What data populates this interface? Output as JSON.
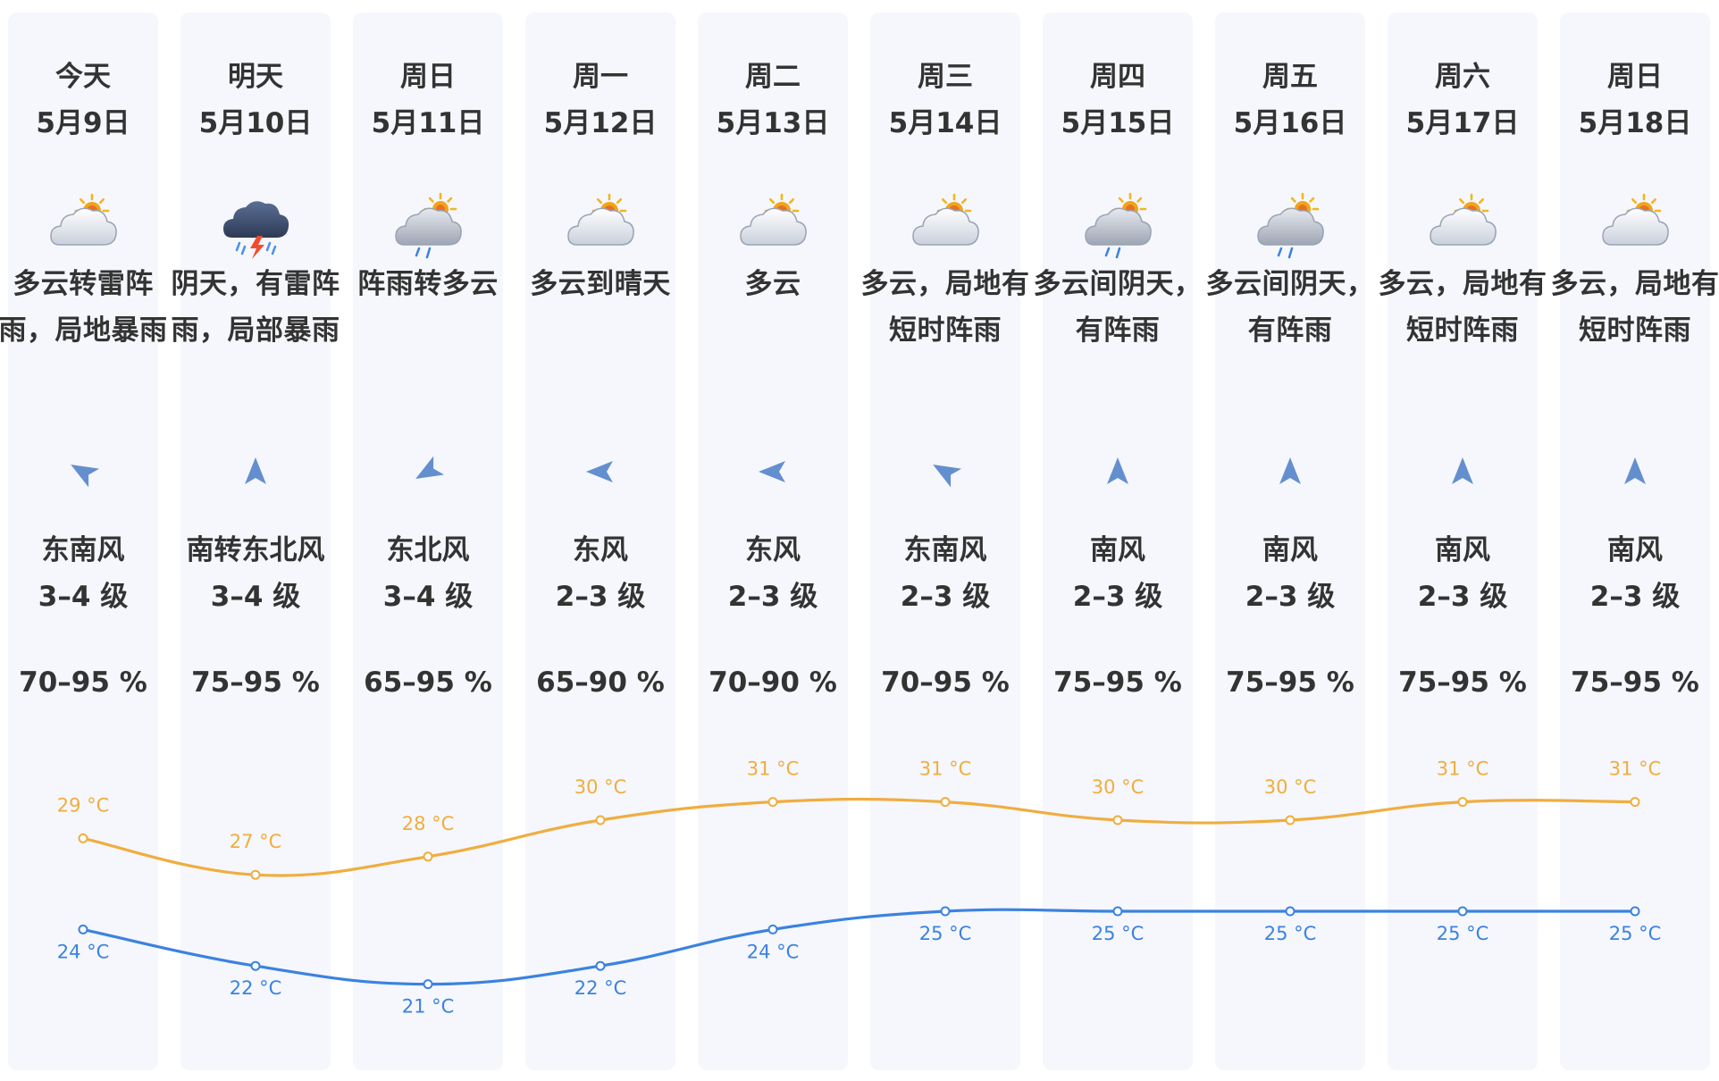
{
  "colors": {
    "column_bg": "#f5f7fc",
    "text": "#333333",
    "high_line": "#f0ad3f",
    "low_line": "#3b82e0",
    "wind_arrow": "#4a7cc7"
  },
  "days": [
    {
      "name": "今天",
      "date": "5月9日",
      "icon": "partly-cloudy-icon",
      "desc": "多云转雷阵雨，局地暴雨",
      "wind_icon": "wind-arrow-southeast-icon",
      "wind_dir": "东南风",
      "wind_level": "3–4 级",
      "humidity": "70–95 %",
      "high": "29 °C",
      "low": "24 °C"
    },
    {
      "name": "明天",
      "date": "5月10日",
      "icon": "thunderstorm-icon",
      "desc": "阴天，有雷阵雨，局部暴雨",
      "wind_icon": "wind-arrow-south-icon",
      "wind_dir": "南转东北风",
      "wind_level": "3–4 级",
      "humidity": "75–95 %",
      "high": "27 °C",
      "low": "22 °C"
    },
    {
      "name": "周日",
      "date": "5月11日",
      "icon": "shower-icon",
      "desc": "阵雨转多云",
      "wind_icon": "wind-arrow-northeast-icon",
      "wind_dir": "东北风",
      "wind_level": "3–4 级",
      "humidity": "65–95 %",
      "high": "28 °C",
      "low": "21 °C"
    },
    {
      "name": "周一",
      "date": "5月12日",
      "icon": "partly-cloudy-icon",
      "desc": "多云到晴天",
      "wind_icon": "wind-arrow-east-icon",
      "wind_dir": "东风",
      "wind_level": "2–3 级",
      "humidity": "65–90 %",
      "high": "30 °C",
      "low": "22 °C"
    },
    {
      "name": "周二",
      "date": "5月13日",
      "icon": "partly-cloudy-icon",
      "desc": "多云",
      "wind_icon": "wind-arrow-east-icon",
      "wind_dir": "东风",
      "wind_level": "2–3 级",
      "humidity": "70–90 %",
      "high": "31 °C",
      "low": "24 °C"
    },
    {
      "name": "周三",
      "date": "5月14日",
      "icon": "partly-cloudy-icon",
      "desc": "多云，局地有短时阵雨",
      "wind_icon": "wind-arrow-southeast-icon",
      "wind_dir": "东南风",
      "wind_level": "2–3 级",
      "humidity": "70–95 %",
      "high": "31 °C",
      "low": "25 °C"
    },
    {
      "name": "周四",
      "date": "5月15日",
      "icon": "shower-icon",
      "desc": "多云间阴天，有阵雨",
      "wind_icon": "wind-arrow-south-icon",
      "wind_dir": "南风",
      "wind_level": "2–3 级",
      "humidity": "75–95 %",
      "high": "30 °C",
      "low": "25 °C"
    },
    {
      "name": "周五",
      "date": "5月16日",
      "icon": "shower-icon",
      "desc": "多云间阴天，有阵雨",
      "wind_icon": "wind-arrow-south-icon",
      "wind_dir": "南风",
      "wind_level": "2–3 级",
      "humidity": "75–95 %",
      "high": "30 °C",
      "low": "25 °C"
    },
    {
      "name": "周六",
      "date": "5月17日",
      "icon": "partly-cloudy-icon",
      "desc": "多云，局地有短时阵雨",
      "wind_icon": "wind-arrow-south-icon",
      "wind_dir": "南风",
      "wind_level": "2–3 级",
      "humidity": "75–95 %",
      "high": "31 °C",
      "low": "25 °C"
    },
    {
      "name": "周日",
      "date": "5月18日",
      "icon": "partly-cloudy-icon",
      "desc": "多云，局地有短时阵雨",
      "wind_icon": "wind-arrow-south-icon",
      "wind_dir": "南风",
      "wind_level": "2–3 级",
      "humidity": "75–95 %",
      "high": "31 °C",
      "low": "25 °C"
    }
  ],
  "chart_data": {
    "type": "line",
    "categories": [
      "5月9日",
      "5月10日",
      "5月11日",
      "5月12日",
      "5月13日",
      "5月14日",
      "5月15日",
      "5月16日",
      "5月17日",
      "5月18日"
    ],
    "series": [
      {
        "values": [
          29,
          27,
          28,
          30,
          31,
          31,
          30,
          30,
          31,
          31
        ],
        "color": "#f0ad3f"
      },
      {
        "values": [
          24,
          22,
          21,
          22,
          24,
          25,
          25,
          25,
          25,
          25
        ],
        "color": "#3b82e0"
      }
    ],
    "unit": "°C",
    "grid": false,
    "legend": "none"
  }
}
